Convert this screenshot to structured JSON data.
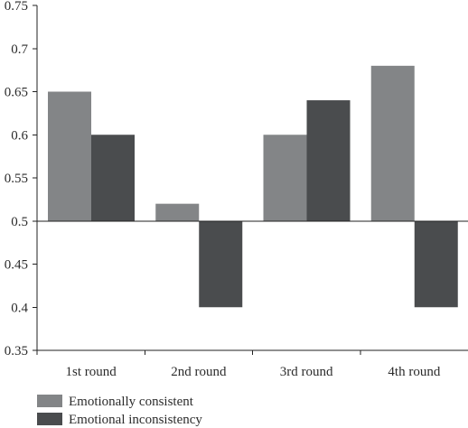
{
  "chart_data": {
    "type": "bar",
    "categories": [
      "1st round",
      "2nd round",
      "3rd round",
      "4th round"
    ],
    "baseline": 0.5,
    "ylim": [
      0.35,
      0.75
    ],
    "yticks": [
      "0.35",
      "0.4",
      "0.45",
      "0.5",
      "0.55",
      "0.6",
      "0.65",
      "0.7",
      "0.75"
    ],
    "grid": false,
    "legend_position": "bottom-left",
    "series": [
      {
        "name": "Emotionally consistent",
        "color": "#838587",
        "values": [
          0.65,
          0.52,
          0.6,
          0.68
        ]
      },
      {
        "name": "Emotional inconsistency",
        "color": "#4a4c4e",
        "values": [
          0.6,
          0.4,
          0.64,
          0.4
        ]
      }
    ],
    "title": "",
    "xlabel": "",
    "ylabel": ""
  }
}
